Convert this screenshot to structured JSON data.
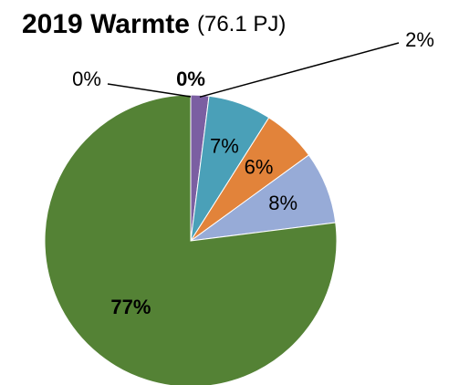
{
  "chart_data": {
    "type": "pie",
    "title": "2019 Warmte",
    "subtitle": "(76.1 PJ)",
    "values": [
      0,
      0,
      2,
      7,
      6,
      8,
      77
    ],
    "value_labels": [
      "0%",
      "0%",
      "2%",
      "7%",
      "6%",
      "8%",
      "77%"
    ],
    "colors": [
      "#000000",
      "#1f1f1f",
      "#7b5fa2",
      "#4aa0b8",
      "#e2833a",
      "#97abd7",
      "#548235"
    ]
  }
}
